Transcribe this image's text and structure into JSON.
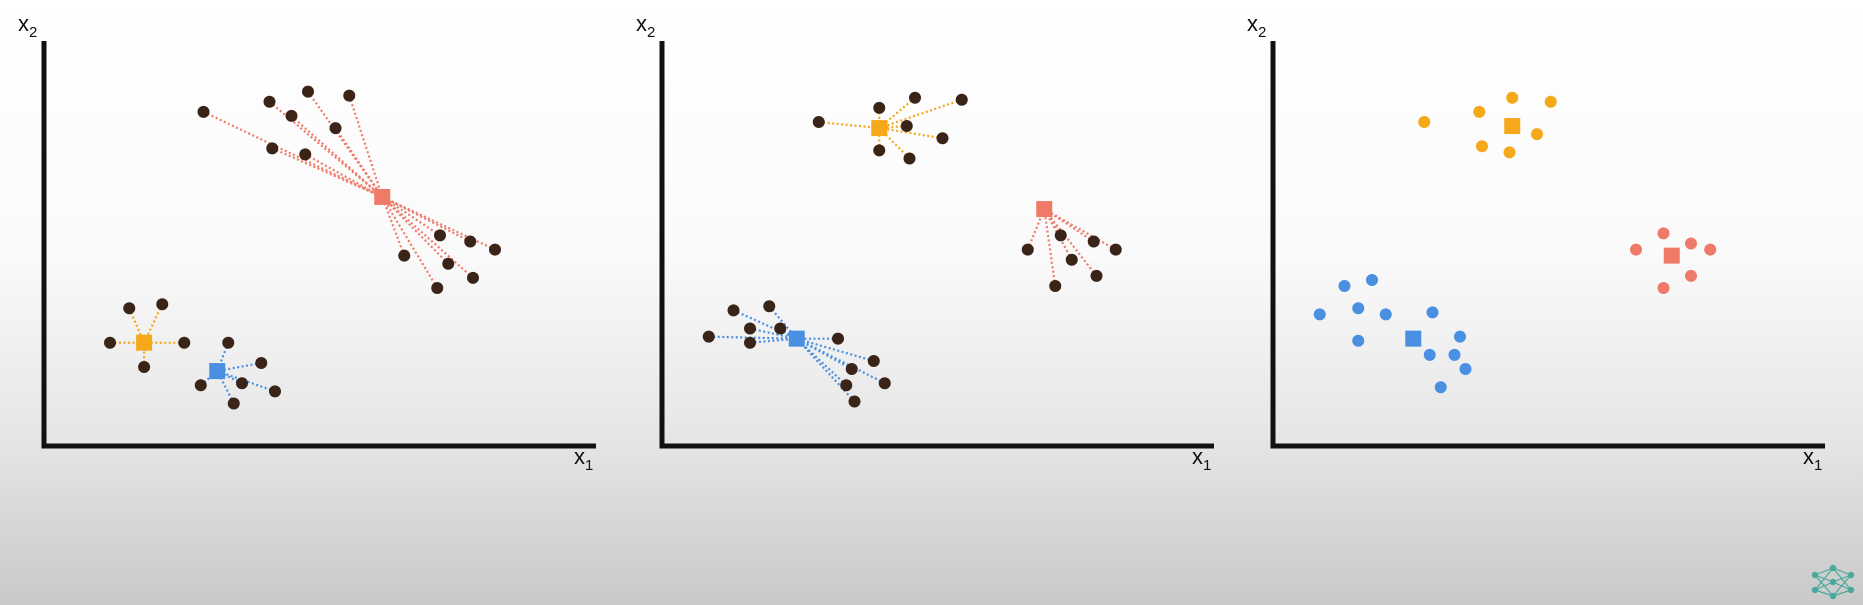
{
  "panels": [
    {
      "id": "panel-1",
      "caption": "",
      "x_label": "x",
      "x_sub": "1",
      "y_label": "x",
      "y_sub": "2",
      "centroids": [
        {
          "name": "orange",
          "x": 1.82,
          "y": 2.55,
          "color": "#f5a81a"
        },
        {
          "name": "blue",
          "x": 3.15,
          "y": 1.85,
          "color": "#4a90e2"
        },
        {
          "name": "red",
          "x": 6.15,
          "y": 6.15,
          "color": "#f07a68"
        }
      ],
      "points": [
        {
          "x": 1.2,
          "y": 2.55,
          "c": "orange"
        },
        {
          "x": 1.55,
          "y": 3.4,
          "c": "orange"
        },
        {
          "x": 2.15,
          "y": 3.5,
          "c": "orange"
        },
        {
          "x": 2.55,
          "y": 2.55,
          "c": "orange"
        },
        {
          "x": 1.82,
          "y": 1.95,
          "c": "orange"
        },
        {
          "x": 3.35,
          "y": 2.55,
          "c": "blue"
        },
        {
          "x": 3.95,
          "y": 2.05,
          "c": "blue"
        },
        {
          "x": 2.85,
          "y": 1.5,
          "c": "blue"
        },
        {
          "x": 3.6,
          "y": 1.55,
          "c": "blue"
        },
        {
          "x": 4.2,
          "y": 1.35,
          "c": "blue"
        },
        {
          "x": 3.45,
          "y": 1.05,
          "c": "blue"
        },
        {
          "x": 2.9,
          "y": 8.25,
          "c": "red"
        },
        {
          "x": 4.1,
          "y": 8.5,
          "c": "red"
        },
        {
          "x": 4.8,
          "y": 8.75,
          "c": "red"
        },
        {
          "x": 5.55,
          "y": 8.65,
          "c": "red"
        },
        {
          "x": 4.5,
          "y": 8.15,
          "c": "red"
        },
        {
          "x": 5.3,
          "y": 7.85,
          "c": "red"
        },
        {
          "x": 4.15,
          "y": 7.35,
          "c": "red"
        },
        {
          "x": 4.75,
          "y": 7.2,
          "c": "red"
        },
        {
          "x": 7.2,
          "y": 5.2,
          "c": "red"
        },
        {
          "x": 7.75,
          "y": 5.05,
          "c": "red"
        },
        {
          "x": 8.2,
          "y": 4.85,
          "c": "red"
        },
        {
          "x": 6.55,
          "y": 4.7,
          "c": "red"
        },
        {
          "x": 7.35,
          "y": 4.5,
          "c": "red"
        },
        {
          "x": 7.8,
          "y": 4.15,
          "c": "red"
        },
        {
          "x": 7.15,
          "y": 3.9,
          "c": "red"
        }
      ],
      "dot_color": "#3a2418",
      "show_lines": true
    },
    {
      "id": "panel-2",
      "caption": "",
      "x_label": "x",
      "x_sub": "1",
      "y_label": "x",
      "y_sub": "2",
      "centroids": [
        {
          "name": "orange",
          "x": 3.95,
          "y": 7.85,
          "color": "#f5a81a"
        },
        {
          "name": "blue",
          "x": 2.45,
          "y": 2.65,
          "color": "#4a90e2"
        },
        {
          "name": "red",
          "x": 6.95,
          "y": 5.85,
          "color": "#f07a68"
        }
      ],
      "points": [
        {
          "x": 2.85,
          "y": 8.0,
          "c": "orange"
        },
        {
          "x": 3.95,
          "y": 8.35,
          "c": "orange"
        },
        {
          "x": 4.6,
          "y": 8.6,
          "c": "orange"
        },
        {
          "x": 5.45,
          "y": 8.55,
          "c": "orange"
        },
        {
          "x": 4.45,
          "y": 7.9,
          "c": "orange"
        },
        {
          "x": 5.1,
          "y": 7.6,
          "c": "orange"
        },
        {
          "x": 3.95,
          "y": 7.3,
          "c": "orange"
        },
        {
          "x": 4.5,
          "y": 7.1,
          "c": "orange"
        },
        {
          "x": 1.3,
          "y": 3.35,
          "c": "blue"
        },
        {
          "x": 1.95,
          "y": 3.45,
          "c": "blue"
        },
        {
          "x": 1.6,
          "y": 2.9,
          "c": "blue"
        },
        {
          "x": 2.15,
          "y": 2.9,
          "c": "blue"
        },
        {
          "x": 0.85,
          "y": 2.7,
          "c": "blue"
        },
        {
          "x": 1.6,
          "y": 2.55,
          "c": "blue"
        },
        {
          "x": 3.2,
          "y": 2.65,
          "c": "blue"
        },
        {
          "x": 3.85,
          "y": 2.1,
          "c": "blue"
        },
        {
          "x": 3.45,
          "y": 1.9,
          "c": "blue"
        },
        {
          "x": 3.35,
          "y": 1.5,
          "c": "blue"
        },
        {
          "x": 4.05,
          "y": 1.55,
          "c": "blue"
        },
        {
          "x": 3.5,
          "y": 1.1,
          "c": "blue"
        },
        {
          "x": 7.25,
          "y": 5.2,
          "c": "red"
        },
        {
          "x": 7.85,
          "y": 5.05,
          "c": "red"
        },
        {
          "x": 8.25,
          "y": 4.85,
          "c": "red"
        },
        {
          "x": 6.65,
          "y": 4.85,
          "c": "red"
        },
        {
          "x": 7.45,
          "y": 4.6,
          "c": "red"
        },
        {
          "x": 7.9,
          "y": 4.2,
          "c": "red"
        },
        {
          "x": 7.15,
          "y": 3.95,
          "c": "red"
        }
      ],
      "dot_color": "#3a2418",
      "show_lines": true
    },
    {
      "id": "panel-3",
      "caption": "",
      "x_label": "x",
      "x_sub": "1",
      "y_label": "x",
      "y_sub": "2",
      "centroids": [
        {
          "name": "orange",
          "x": 4.35,
          "y": 7.9,
          "color": "#f5a81a"
        },
        {
          "name": "blue",
          "x": 2.55,
          "y": 2.65,
          "color": "#4a90e2"
        },
        {
          "name": "red",
          "x": 7.25,
          "y": 4.7,
          "color": "#f07a68"
        }
      ],
      "points": [
        {
          "x": 2.75,
          "y": 8.0,
          "c": "orange"
        },
        {
          "x": 3.75,
          "y": 8.25,
          "c": "orange"
        },
        {
          "x": 4.35,
          "y": 8.6,
          "c": "orange"
        },
        {
          "x": 5.05,
          "y": 8.5,
          "c": "orange"
        },
        {
          "x": 4.8,
          "y": 7.7,
          "c": "orange"
        },
        {
          "x": 3.8,
          "y": 7.4,
          "c": "orange"
        },
        {
          "x": 4.3,
          "y": 7.25,
          "c": "orange"
        },
        {
          "x": 1.3,
          "y": 3.95,
          "c": "blue"
        },
        {
          "x": 1.8,
          "y": 4.1,
          "c": "blue"
        },
        {
          "x": 1.55,
          "y": 3.4,
          "c": "blue"
        },
        {
          "x": 2.05,
          "y": 3.25,
          "c": "blue"
        },
        {
          "x": 0.85,
          "y": 3.25,
          "c": "blue"
        },
        {
          "x": 1.55,
          "y": 2.6,
          "c": "blue"
        },
        {
          "x": 2.9,
          "y": 3.3,
          "c": "blue"
        },
        {
          "x": 3.4,
          "y": 2.7,
          "c": "blue"
        },
        {
          "x": 2.85,
          "y": 2.25,
          "c": "blue"
        },
        {
          "x": 3.3,
          "y": 2.25,
          "c": "blue"
        },
        {
          "x": 3.5,
          "y": 1.9,
          "c": "blue"
        },
        {
          "x": 3.05,
          "y": 1.45,
          "c": "blue"
        },
        {
          "x": 7.1,
          "y": 5.25,
          "c": "red"
        },
        {
          "x": 7.6,
          "y": 5.0,
          "c": "red"
        },
        {
          "x": 7.95,
          "y": 4.85,
          "c": "red"
        },
        {
          "x": 6.6,
          "y": 4.85,
          "c": "red"
        },
        {
          "x": 7.6,
          "y": 4.2,
          "c": "red"
        },
        {
          "x": 7.1,
          "y": 3.9,
          "c": "red"
        }
      ],
      "dot_color": null,
      "show_lines": false
    }
  ],
  "logo": {
    "name": "neural-network-logo",
    "color": "#4aa99a"
  }
}
